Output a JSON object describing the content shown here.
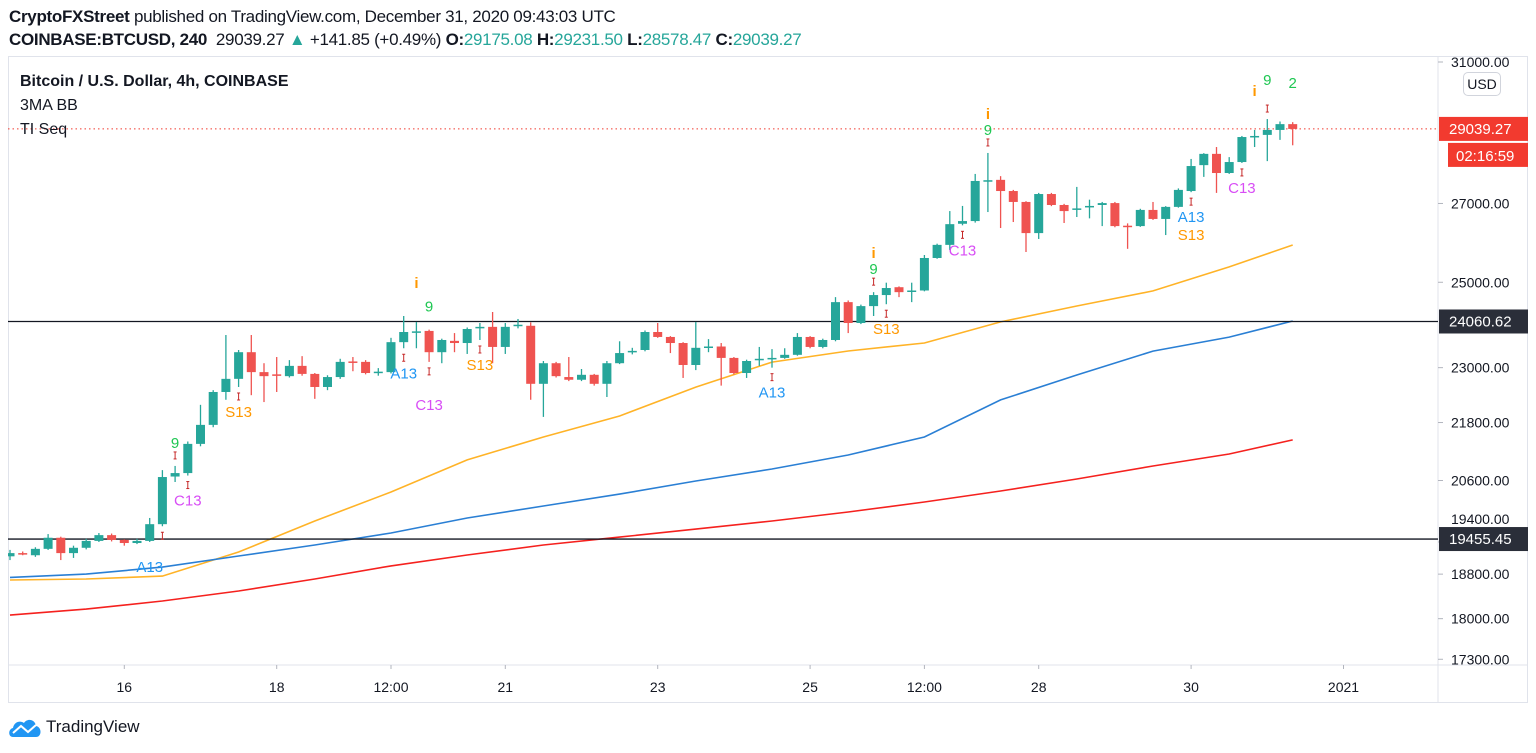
{
  "header": {
    "author": "CryptoFXStreet",
    "published_text": "published on TradingView.com, December 31, 2020 09:43:03 UTC",
    "symbol": "COINBASE:BTCUSD, 240",
    "last_price": "29039.27",
    "change": "+141.85 (+0.49%)",
    "o_label": "O:",
    "o_value": "29175.08",
    "h_label": "H:",
    "h_value": "29231.50",
    "l_label": "L:",
    "l_value": "28578.47",
    "c_label": "C:",
    "c_value": "29039.27"
  },
  "legend": {
    "title": "Bitcoin / U.S. Dollar, 4h, COINBASE",
    "indicator1": "3MA BB",
    "indicator2": "TI Seq"
  },
  "price_axis": {
    "currency": "USD",
    "last_price_label": "29039.27",
    "countdown": "02:16:59"
  },
  "footer": {
    "brand": "TradingView"
  },
  "colors": {
    "up": "#26a69a",
    "down": "#ef5350",
    "ma_fast": "#ffb327",
    "ma_mid": "#2a7fd4",
    "ma_slow": "#f5211e",
    "hline": "#131722",
    "last_price": "#f23a2f",
    "td_9": "#1ec752",
    "td_i": "#ff9800",
    "td_A13": "#2196f3",
    "td_C13": "#d84df5",
    "td_S13": "#ff9800",
    "td_marker": "#c62828"
  },
  "chart_data": {
    "type": "candlestick",
    "title": "Bitcoin / U.S. Dollar, 4h, COINBASE",
    "interval": "4h",
    "x_start": "2020-12-14T12:00Z",
    "y_scale": "log",
    "ylim": [
      17150,
      31300
    ],
    "grid": false,
    "y_ticks": [
      "31000.00",
      "27000.00",
      "25000.00",
      "23000.00",
      "21800.00",
      "20600.00",
      "19400.00",
      "18800.00",
      "18000.00",
      "17300.00"
    ],
    "x_ticks": [
      {
        "label": "16",
        "time": "2020-12-16T00:00Z"
      },
      {
        "label": "18",
        "time": "2020-12-18T00:00Z"
      },
      {
        "label": "12:00",
        "time": "2020-12-19T12:00Z"
      },
      {
        "label": "21",
        "time": "2020-12-21T00:00Z"
      },
      {
        "label": "23",
        "time": "2020-12-23T00:00Z"
      },
      {
        "label": "25",
        "time": "2020-12-25T00:00Z"
      },
      {
        "label": "12:00",
        "time": "2020-12-26T12:00Z"
      },
      {
        "label": "28",
        "time": "2020-12-28T00:00Z"
      },
      {
        "label": "30",
        "time": "2020-12-30T00:00Z"
      },
      {
        "label": "2021",
        "time": "2021-01-01T00:00Z"
      }
    ],
    "ohlc": [
      [
        19130,
        19250,
        19060,
        19190
      ],
      [
        19190,
        19220,
        19150,
        19170
      ],
      [
        19150,
        19300,
        19120,
        19270
      ],
      [
        19270,
        19550,
        19250,
        19480
      ],
      [
        19480,
        19500,
        19060,
        19190
      ],
      [
        19190,
        19330,
        19100,
        19290
      ],
      [
        19290,
        19460,
        19260,
        19420
      ],
      [
        19420,
        19570,
        19400,
        19530
      ],
      [
        19530,
        19560,
        19410,
        19440
      ],
      [
        19440,
        19450,
        19330,
        19380
      ],
      [
        19380,
        19460,
        19360,
        19420
      ],
      [
        19420,
        19860,
        19400,
        19740
      ],
      [
        19740,
        20810,
        19700,
        20670
      ],
      [
        20680,
        20895,
        20570,
        20750
      ],
      [
        20750,
        21400,
        20700,
        21350
      ],
      [
        21350,
        22180,
        21300,
        21750
      ],
      [
        21750,
        22500,
        21700,
        22460
      ],
      [
        22460,
        23745,
        22290,
        22750
      ],
      [
        22750,
        23400,
        22570,
        23350
      ],
      [
        23350,
        23745,
        22390,
        22900
      ],
      [
        22900,
        23100,
        22240,
        22810
      ],
      [
        22850,
        23240,
        22460,
        22830
      ],
      [
        22810,
        23170,
        22780,
        23040
      ],
      [
        23040,
        23260,
        22820,
        22860
      ],
      [
        22860,
        22880,
        22310,
        22570
      ],
      [
        22570,
        22830,
        22500,
        22790
      ],
      [
        22790,
        23200,
        22750,
        23130
      ],
      [
        23140,
        23240,
        22920,
        23110
      ],
      [
        23130,
        23170,
        22850,
        22880
      ],
      [
        22880,
        22990,
        22820,
        22910
      ],
      [
        22900,
        23680,
        22870,
        23580
      ],
      [
        23580,
        24190,
        23440,
        23815
      ],
      [
        23800,
        24050,
        23440,
        23830
      ],
      [
        23840,
        23870,
        23130,
        23350
      ],
      [
        23350,
        23660,
        23100,
        23630
      ],
      [
        23610,
        23790,
        23350,
        23560
      ],
      [
        23560,
        23920,
        23310,
        23885
      ],
      [
        23910,
        24025,
        23630,
        23935
      ],
      [
        23935,
        24285,
        23100,
        23470
      ],
      [
        23470,
        24025,
        23310,
        23935
      ],
      [
        23960,
        24120,
        23900,
        23985
      ],
      [
        23960,
        24040,
        22290,
        22640
      ],
      [
        22640,
        23150,
        21920,
        23100
      ],
      [
        23100,
        23130,
        22780,
        22810
      ],
      [
        22790,
        23240,
        22700,
        22730
      ],
      [
        22730,
        22970,
        22700,
        22840
      ],
      [
        22840,
        22860,
        22600,
        22640
      ],
      [
        22640,
        23150,
        22350,
        23100
      ],
      [
        23100,
        23600,
        23080,
        23330
      ],
      [
        23360,
        23450,
        23300,
        23380
      ],
      [
        23400,
        23850,
        23370,
        23815
      ],
      [
        23815,
        24025,
        23680,
        23700
      ],
      [
        23700,
        23720,
        23330,
        23560
      ],
      [
        23560,
        23580,
        22770,
        23060
      ],
      [
        23060,
        24050,
        22945,
        23450
      ],
      [
        23460,
        23650,
        23350,
        23480
      ],
      [
        23480,
        23560,
        22600,
        23220
      ],
      [
        23220,
        23240,
        22850,
        22880
      ],
      [
        22880,
        23180,
        22770,
        23150
      ],
      [
        23180,
        23470,
        23040,
        23200
      ],
      [
        23200,
        23420,
        23000,
        23220
      ],
      [
        23220,
        23440,
        23200,
        23290
      ],
      [
        23290,
        23790,
        23270,
        23700
      ],
      [
        23700,
        23720,
        23440,
        23470
      ],
      [
        23470,
        23660,
        23440,
        23630
      ],
      [
        23630,
        24640,
        23600,
        24520
      ],
      [
        24520,
        24560,
        23790,
        24025
      ],
      [
        24025,
        24460,
        24000,
        24425
      ],
      [
        24425,
        24760,
        24190,
        24690
      ],
      [
        24690,
        24990,
        24470,
        24860
      ],
      [
        24880,
        24900,
        24640,
        24760
      ],
      [
        24780,
        24990,
        24520,
        24800
      ],
      [
        24800,
        25675,
        24780,
        25600
      ],
      [
        25600,
        25960,
        25580,
        25930
      ],
      [
        25930,
        26800,
        25800,
        26460
      ],
      [
        26470,
        26935,
        26430,
        26540
      ],
      [
        26540,
        27790,
        26500,
        27600
      ],
      [
        27600,
        28365,
        26775,
        27620
      ],
      [
        27630,
        27730,
        26360,
        27330
      ],
      [
        27330,
        27360,
        26515,
        27040
      ],
      [
        27040,
        27060,
        25750,
        26230
      ],
      [
        26230,
        27280,
        26080,
        27250
      ],
      [
        27250,
        27280,
        26930,
        26960
      ],
      [
        26960,
        26990,
        26490,
        26800
      ],
      [
        26850,
        27440,
        26645,
        26870
      ],
      [
        26900,
        27100,
        26610,
        26935
      ],
      [
        26960,
        27040,
        26410,
        27010
      ],
      [
        27010,
        27040,
        26380,
        26410
      ],
      [
        26420,
        26480,
        25830,
        26400
      ],
      [
        26410,
        26860,
        26390,
        26830
      ],
      [
        26830,
        27040,
        26570,
        26595
      ],
      [
        26595,
        26930,
        26180,
        26910
      ],
      [
        26910,
        27400,
        26890,
        27360
      ],
      [
        27330,
        28200,
        27300,
        28005
      ],
      [
        28030,
        28360,
        27710,
        28340
      ],
      [
        28340,
        28530,
        27280,
        27815
      ],
      [
        27815,
        28250,
        27790,
        28115
      ],
      [
        28115,
        28840,
        28090,
        28810
      ],
      [
        28820,
        29010,
        28530,
        28840
      ],
      [
        28870,
        29320,
        28140,
        29010
      ],
      [
        29010,
        29250,
        28730,
        29175
      ],
      [
        29175.08,
        29231.5,
        28578.47,
        29039.27
      ]
    ],
    "moving_averages": [
      {
        "color_key": "ma_fast",
        "points": [
          [
            "2020-12-14T12:00Z",
            18693
          ],
          [
            "2020-12-15T12:00Z",
            18711
          ],
          [
            "2020-12-16T12:00Z",
            18764
          ],
          [
            "2020-12-17T12:00Z",
            19210
          ],
          [
            "2020-12-18T12:00Z",
            19802
          ],
          [
            "2020-12-19T12:00Z",
            20370
          ],
          [
            "2020-12-20T12:00Z",
            21018
          ],
          [
            "2020-12-21T12:00Z",
            21495
          ],
          [
            "2020-12-22T12:00Z",
            21940
          ],
          [
            "2020-12-23T12:00Z",
            22568
          ],
          [
            "2020-12-24T12:00Z",
            23126
          ],
          [
            "2020-12-25T12:00Z",
            23377
          ],
          [
            "2020-12-26T12:00Z",
            23560
          ],
          [
            "2020-12-27T12:00Z",
            24050
          ],
          [
            "2020-12-28T12:00Z",
            24428
          ],
          [
            "2020-12-29T12:00Z",
            24791
          ],
          [
            "2020-12-30T12:00Z",
            25377
          ],
          [
            "2020-12-31T08:00Z",
            25928
          ]
        ]
      },
      {
        "color_key": "ma_mid",
        "points": [
          [
            "2020-12-14T12:00Z",
            18740
          ],
          [
            "2020-12-15T12:00Z",
            18800
          ],
          [
            "2020-12-16T12:00Z",
            18930
          ],
          [
            "2020-12-17T12:00Z",
            19135
          ],
          [
            "2020-12-18T12:00Z",
            19343
          ],
          [
            "2020-12-19T12:00Z",
            19571
          ],
          [
            "2020-12-20T12:00Z",
            19859
          ],
          [
            "2020-12-21T12:00Z",
            20093
          ],
          [
            "2020-12-22T12:00Z",
            20329
          ],
          [
            "2020-12-23T12:00Z",
            20590
          ],
          [
            "2020-12-24T12:00Z",
            20832
          ],
          [
            "2020-12-25T12:00Z",
            21120
          ],
          [
            "2020-12-26T12:00Z",
            21495
          ],
          [
            "2020-12-27T12:00Z",
            22286
          ],
          [
            "2020-12-28T12:00Z",
            22835
          ],
          [
            "2020-12-29T12:00Z",
            23375
          ],
          [
            "2020-12-30T12:00Z",
            23696
          ],
          [
            "2020-12-31T08:00Z",
            24072
          ]
        ]
      },
      {
        "color_key": "ma_slow",
        "points": [
          [
            "2020-12-14T12:00Z",
            18063
          ],
          [
            "2020-12-15T12:00Z",
            18168
          ],
          [
            "2020-12-16T12:00Z",
            18313
          ],
          [
            "2020-12-17T12:00Z",
            18492
          ],
          [
            "2020-12-18T12:00Z",
            18711
          ],
          [
            "2020-12-19T12:00Z",
            18951
          ],
          [
            "2020-12-20T12:00Z",
            19155
          ],
          [
            "2020-12-21T12:00Z",
            19343
          ],
          [
            "2020-12-22T12:00Z",
            19492
          ],
          [
            "2020-12-23T12:00Z",
            19645
          ],
          [
            "2020-12-24T12:00Z",
            19802
          ],
          [
            "2020-12-25T12:00Z",
            19976
          ],
          [
            "2020-12-26T12:00Z",
            20172
          ],
          [
            "2020-12-27T12:00Z",
            20390
          ],
          [
            "2020-12-28T12:00Z",
            20631
          ],
          [
            "2020-12-29T12:00Z",
            20893
          ],
          [
            "2020-12-30T12:00Z",
            21140
          ],
          [
            "2020-12-31T08:00Z",
            21433
          ]
        ]
      }
    ],
    "horizontal_lines": [
      {
        "value": 24060.62,
        "label": "24060.62"
      },
      {
        "value": 19455.45,
        "label": "19455.45"
      }
    ],
    "td_labels": [
      {
        "candle": 11,
        "text": "A13",
        "side": "below",
        "color_key": "td_A13"
      },
      {
        "candle": 13,
        "text": "9",
        "side": "above",
        "color_key": "td_9"
      },
      {
        "candle": 14,
        "text": "C13",
        "side": "below",
        "color_key": "td_C13"
      },
      {
        "candle": 18,
        "text": "S13",
        "side": "below",
        "color_key": "td_S13"
      },
      {
        "candle": 31,
        "text": "A13",
        "side": "below",
        "color_key": "td_A13"
      },
      {
        "candle": 32,
        "text": "i",
        "side": "above2",
        "color_key": "td_i"
      },
      {
        "candle": 33,
        "text": "9",
        "side": "above",
        "color_key": "td_9"
      },
      {
        "candle": 33,
        "text": "C13",
        "side": "below2",
        "color_key": "td_C13"
      },
      {
        "candle": 37,
        "text": "S13",
        "side": "below",
        "color_key": "td_S13"
      },
      {
        "candle": 60,
        "text": "A13",
        "side": "below",
        "color_key": "td_A13"
      },
      {
        "candle": 68,
        "text": "i",
        "side": "above2",
        "color_key": "td_i"
      },
      {
        "candle": 68,
        "text": "9",
        "side": "above",
        "color_key": "td_9"
      },
      {
        "candle": 69,
        "text": "S13",
        "side": "below",
        "color_key": "td_S13"
      },
      {
        "candle": 75,
        "text": "C13",
        "side": "below",
        "color_key": "td_C13"
      },
      {
        "candle": 77,
        "text": "i",
        "side": "above2",
        "color_key": "td_i"
      },
      {
        "candle": 77,
        "text": "9",
        "side": "above",
        "color_key": "td_9"
      },
      {
        "candle": 93,
        "text": "A13",
        "side": "below",
        "color_key": "td_A13"
      },
      {
        "candle": 93,
        "text": "S13",
        "side": "below2",
        "color_key": "td_S13"
      },
      {
        "candle": 97,
        "text": "C13",
        "side": "below",
        "color_key": "td_C13"
      },
      {
        "candle": 98,
        "text": "i",
        "side": "above2",
        "color_key": "td_i"
      },
      {
        "candle": 99,
        "text": "9",
        "side": "above2",
        "color_key": "td_9"
      },
      {
        "candle": 101,
        "text": "2",
        "side": "above2",
        "color_key": "td_9"
      }
    ],
    "td_markers": [
      {
        "candle": 12,
        "side": "below"
      },
      {
        "candle": 13,
        "side": "above"
      },
      {
        "candle": 14,
        "side": "below"
      },
      {
        "candle": 18,
        "side": "below"
      },
      {
        "candle": 31,
        "side": "below"
      },
      {
        "candle": 33,
        "side": "below"
      },
      {
        "candle": 37,
        "side": "below"
      },
      {
        "candle": 60,
        "side": "below"
      },
      {
        "candle": 68,
        "side": "above"
      },
      {
        "candle": 69,
        "side": "below"
      },
      {
        "candle": 75,
        "side": "below"
      },
      {
        "candle": 77,
        "side": "above"
      },
      {
        "candle": 93,
        "side": "below"
      },
      {
        "candle": 97,
        "side": "below"
      },
      {
        "candle": 99,
        "side": "above"
      }
    ]
  }
}
